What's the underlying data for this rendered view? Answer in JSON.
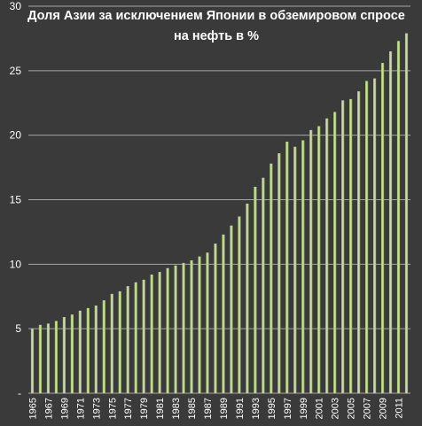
{
  "chart_data": {
    "type": "bar",
    "title": "Доля Азии за исключением Японии в обземировом спросе на нефть в %",
    "xlabel": "",
    "ylabel": "",
    "ylim": [
      0,
      30
    ],
    "y_ticks": [
      {
        "value": 0,
        "label": "-"
      },
      {
        "value": 5,
        "label": "5"
      },
      {
        "value": 10,
        "label": "10"
      },
      {
        "value": 15,
        "label": "15"
      },
      {
        "value": 20,
        "label": "20"
      },
      {
        "value": 25,
        "label": "25"
      },
      {
        "value": 30,
        "label": "30"
      }
    ],
    "grid": true,
    "legend": "none",
    "categories": [
      "1965",
      "1966",
      "1967",
      "1968",
      "1969",
      "1970",
      "1971",
      "1972",
      "1973",
      "1974",
      "1975",
      "1976",
      "1977",
      "1978",
      "1979",
      "1980",
      "1981",
      "1982",
      "1983",
      "1984",
      "1985",
      "1986",
      "1987",
      "1988",
      "1989",
      "1990",
      "1991",
      "1992",
      "1993",
      "1994",
      "1995",
      "1996",
      "1997",
      "1998",
      "1999",
      "2000",
      "2001",
      "2002",
      "2003",
      "2004",
      "2005",
      "2006",
      "2007",
      "2008",
      "2009",
      "2010",
      "2011",
      "2012"
    ],
    "x_tick_labels": [
      "1965",
      "1967",
      "1969",
      "1971",
      "1973",
      "1975",
      "1977",
      "1979",
      "1981",
      "1983",
      "1985",
      "1987",
      "1989",
      "1991",
      "1993",
      "1995",
      "1997",
      "1999",
      "2001",
      "2003",
      "2005",
      "2007",
      "2009",
      "2011"
    ],
    "values": [
      5.0,
      5.3,
      5.4,
      5.6,
      5.9,
      6.1,
      6.4,
      6.6,
      6.8,
      7.2,
      7.7,
      7.9,
      8.3,
      8.6,
      8.8,
      9.2,
      9.4,
      9.7,
      9.9,
      10.1,
      10.3,
      10.6,
      10.9,
      11.6,
      12.3,
      13.0,
      13.7,
      14.7,
      16.0,
      16.7,
      17.8,
      18.6,
      19.5,
      19.1,
      19.6,
      20.4,
      20.7,
      21.3,
      21.8,
      22.7,
      22.8,
      23.4,
      24.2,
      24.4,
      25.6,
      26.5,
      27.3,
      27.9
    ],
    "colors": {
      "background": "#3a3a3a",
      "grid": "#a6a6a6",
      "bar": "#9bbb59",
      "bar_highlight": "#d7e4bd",
      "text": "#ffffff"
    }
  }
}
